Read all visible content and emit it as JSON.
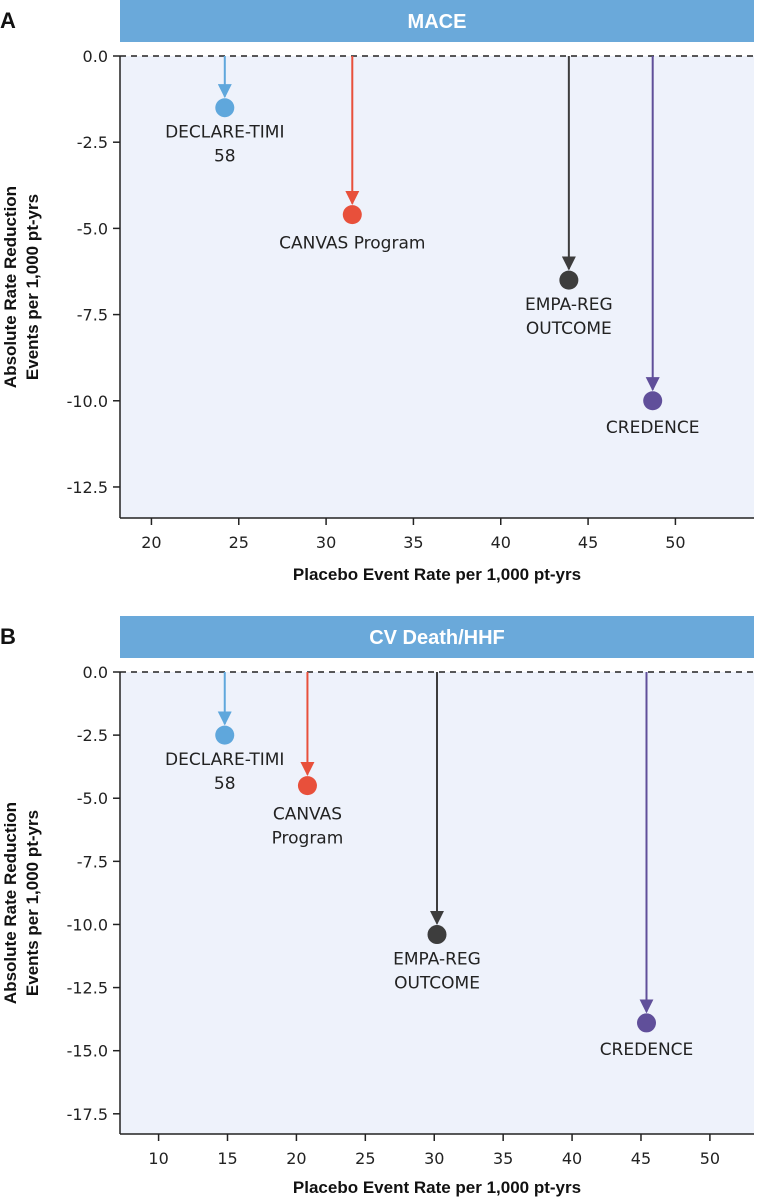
{
  "chart_data": [
    {
      "panel": "A",
      "type": "scatter",
      "title": "MACE",
      "xlabel": "Placebo Event Rate per 1,000 pt-yrs",
      "ylabel": [
        "Absolute Rate Reduction",
        "Events per 1,000 pt-yrs"
      ],
      "xlim": [
        18.2,
        54.5
      ],
      "ylim": [
        -13.4,
        0
      ],
      "x_ticks": [
        20,
        25,
        30,
        35,
        40,
        45,
        50
      ],
      "y_ticks": [
        0,
        -2.5,
        -5,
        -7.5,
        -10,
        -12.5
      ],
      "y_tick_labels": [
        "0.0",
        "-2.5",
        "-5.0",
        "-7.5",
        "-10.0",
        "-12.5"
      ],
      "reference_line": {
        "y": 0,
        "style": "dashed"
      },
      "series": [
        {
          "name": "DECLARE-TIMI 58",
          "label_lines": [
            "DECLARE-TIMI",
            "58"
          ],
          "x": 24.2,
          "y": -1.5,
          "color": "#5fa7dc"
        },
        {
          "name": "CANVAS Program",
          "label_lines": [
            "CANVAS Program"
          ],
          "x": 31.5,
          "y": -4.6,
          "color": "#e8503b"
        },
        {
          "name": "EMPA-REG OUTCOME",
          "label_lines": [
            "EMPA-REG",
            "OUTCOME"
          ],
          "x": 43.9,
          "y": -6.5,
          "color": "#3d3d3d"
        },
        {
          "name": "CREDENCE",
          "label_lines": [
            "CREDENCE"
          ],
          "x": 48.7,
          "y": -10.0,
          "color": "#604f9a"
        }
      ]
    },
    {
      "panel": "B",
      "type": "scatter",
      "title": "CV Death/HHF",
      "xlabel": "Placebo Event Rate per 1,000 pt-yrs",
      "ylabel": [
        "Absolute Rate Reduction",
        "Events per 1,000 pt-yrs"
      ],
      "xlim": [
        7.2,
        53.2
      ],
      "ylim": [
        -18.3,
        0
      ],
      "x_ticks": [
        10,
        15,
        20,
        25,
        30,
        35,
        40,
        45,
        50
      ],
      "y_ticks": [
        0,
        -2.5,
        -5,
        -7.5,
        -10,
        -12.5,
        -15,
        -17.5
      ],
      "y_tick_labels": [
        "0.0",
        "-2.5",
        "-5.0",
        "-7.5",
        "-10.0",
        "-12.5",
        "-15.0",
        "-17.5"
      ],
      "reference_line": {
        "y": 0,
        "style": "dashed"
      },
      "series": [
        {
          "name": "DECLARE-TIMI 58",
          "label_lines": [
            "DECLARE-TIMI",
            "58"
          ],
          "x": 14.8,
          "y": -2.5,
          "color": "#5fa7dc"
        },
        {
          "name": "CANVAS Program",
          "label_lines": [
            "CANVAS",
            "Program"
          ],
          "x": 20.8,
          "y": -4.5,
          "color": "#e8503b"
        },
        {
          "name": "EMPA-REG OUTCOME",
          "label_lines": [
            "EMPA-REG",
            "OUTCOME"
          ],
          "x": 30.2,
          "y": -10.4,
          "color": "#3d3d3d"
        },
        {
          "name": "CREDENCE",
          "label_lines": [
            "CREDENCE"
          ],
          "x": 45.4,
          "y": -13.9,
          "color": "#604f9a"
        }
      ]
    }
  ],
  "colors": {
    "banner": "#6aa9da",
    "plot_background": "#eef2fb",
    "axis": "#222222"
  }
}
